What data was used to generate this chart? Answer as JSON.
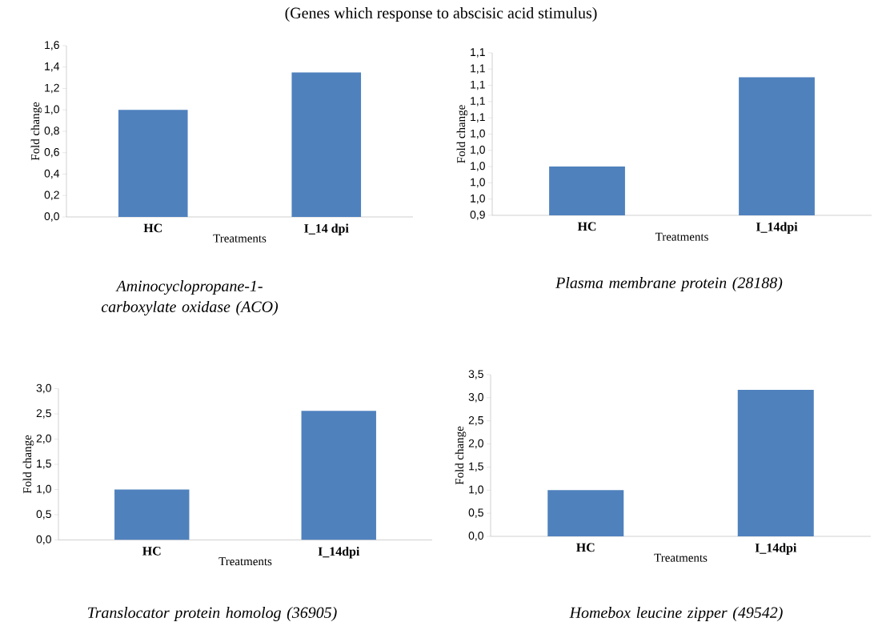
{
  "chart_data": [
    {
      "type": "bar",
      "title": "(Genes which response to abscisic acid stimulus)",
      "xlabel": "Treatments",
      "ylabel": "Fold change",
      "categories": [
        "HC",
        "I_14 dpi"
      ],
      "values": [
        1.0,
        1.35
      ],
      "color": "#4f81bd",
      "ylim": [
        0,
        1.6
      ],
      "yticks": [
        {
          "value": 0,
          "label": "0,0"
        },
        {
          "value": 0.2,
          "label": "0,2"
        },
        {
          "value": 0.4,
          "label": "0,4"
        },
        {
          "value": 0.6,
          "label": "0,6"
        },
        {
          "value": 0.8,
          "label": "0,8"
        },
        {
          "value": 1.0,
          "label": "1,0"
        },
        {
          "value": 1.2,
          "label": "1,2"
        },
        {
          "value": 1.4,
          "label": "1,4"
        },
        {
          "value": 1.6,
          "label": "1,6"
        }
      ],
      "annotations": [
        "Aminocyclopropane-1-carboxylate oxidase (ACO)"
      ]
    },
    {
      "type": "bar",
      "xlabel": "Treatments",
      "ylabel": "Fold change",
      "categories": [
        "HC",
        "I_14dpi"
      ],
      "values": [
        1.0,
        1.11
      ],
      "color": "#4f81bd",
      "ylim": [
        0.94,
        1.14
      ],
      "yticks": [
        {
          "value": 0.94,
          "label": "0,9"
        },
        {
          "value": 0.96,
          "label": "1,0"
        },
        {
          "value": 0.98,
          "label": "1,0"
        },
        {
          "value": 1.0,
          "label": "1,0"
        },
        {
          "value": 1.02,
          "label": "1,0"
        },
        {
          "value": 1.04,
          "label": "1,0"
        },
        {
          "value": 1.06,
          "label": "1,1"
        },
        {
          "value": 1.08,
          "label": "1,1"
        },
        {
          "value": 1.1,
          "label": "1,1"
        },
        {
          "value": 1.12,
          "label": "1,1"
        },
        {
          "value": 1.14,
          "label": "1,1"
        }
      ],
      "annotations": [
        "Plasma membrane protein (28188)"
      ]
    },
    {
      "type": "bar",
      "xlabel": "Treatments",
      "ylabel": "Fold change",
      "categories": [
        "HC",
        "I_14dpi"
      ],
      "values": [
        1.0,
        2.56
      ],
      "color": "#4f81bd",
      "ylim": [
        0,
        3.0
      ],
      "yticks": [
        {
          "value": 0,
          "label": "0,0"
        },
        {
          "value": 0.5,
          "label": "0,5"
        },
        {
          "value": 1.0,
          "label": "1,0"
        },
        {
          "value": 1.5,
          "label": "1,5"
        },
        {
          "value": 2.0,
          "label": "2,0"
        },
        {
          "value": 2.5,
          "label": "2,5"
        },
        {
          "value": 3.0,
          "label": "3,0"
        }
      ],
      "annotations": [
        "Translocator protein homolog (36905)"
      ]
    },
    {
      "type": "bar",
      "xlabel": "Treatments",
      "ylabel": "Fold change",
      "categories": [
        "HC",
        "I_14dpi"
      ],
      "values": [
        1.0,
        3.17
      ],
      "color": "#4f81bd",
      "ylim": [
        0,
        3.5
      ],
      "yticks": [
        {
          "value": 0,
          "label": "0,0"
        },
        {
          "value": 0.5,
          "label": "0,5"
        },
        {
          "value": 1.0,
          "label": "1,0"
        },
        {
          "value": 1.5,
          "label": "1,5"
        },
        {
          "value": 2.0,
          "label": "2,0"
        },
        {
          "value": 2.5,
          "label": "2,5"
        },
        {
          "value": 3.0,
          "label": "3,0"
        },
        {
          "value": 3.5,
          "label": "3,5"
        }
      ],
      "annotations": [
        "Homebox leucine zipper (49542)"
      ]
    }
  ]
}
